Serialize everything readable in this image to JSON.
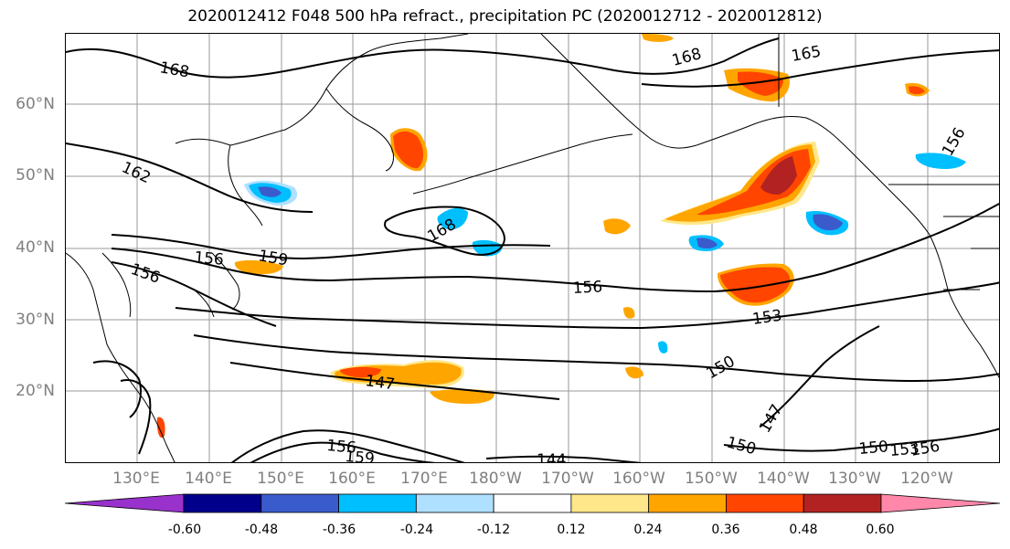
{
  "title": "2020012412 F048 500 hPa refract., precipitation PC (2020012712 - 2020012812)",
  "lat_labels": [
    "60°N",
    "50°N",
    "40°N",
    "30°N",
    "20°N"
  ],
  "lon_labels": [
    "130°E",
    "140°E",
    "150°E",
    "160°E",
    "170°E",
    "180°W",
    "170°W",
    "160°W",
    "150°W",
    "140°W",
    "130°W",
    "120°W"
  ],
  "contour_labels": [
    "168",
    "168",
    "165",
    "162",
    "159",
    "156",
    "156",
    "156",
    "156",
    "153",
    "150",
    "150",
    "150",
    "147",
    "147",
    "144",
    "153",
    "156",
    "168",
    "159",
    "156"
  ],
  "colorbar": {
    "ticks": [
      "-0.60",
      "-0.48",
      "-0.36",
      "-0.24",
      "-0.12",
      "0.12",
      "0.24",
      "0.36",
      "0.48",
      "0.60"
    ],
    "colors": [
      "#9932cc",
      "#00008b",
      "#3a5bcc",
      "#00bfff",
      "#b0e0ff",
      "#ffffff",
      "#ffe78a",
      "#ffa500",
      "#ff4500",
      "#b22222",
      "#ff88aa"
    ]
  }
}
